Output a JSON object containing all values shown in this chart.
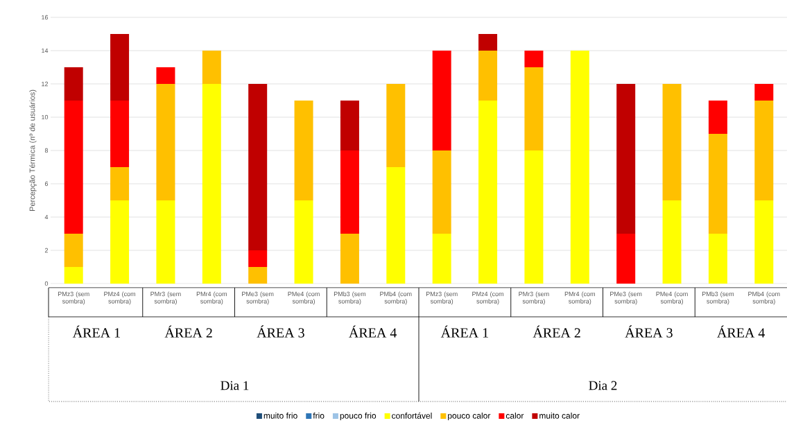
{
  "chart_data": {
    "type": "bar",
    "stacked": true,
    "ylabel": "Percepção Térmica (nº de usuários)",
    "categories": [
      "PMz3 (sem sombra)",
      "PMz4 (com sombra)",
      "PMr3 (sem sombra)",
      "PMr4 (com sombra)",
      "PMe3 (sem sombra)",
      "PMe4 (com sombra)",
      "PMb3 (sem sombra)",
      "PMb4 (com sombra)",
      "PMz3 (sem sombra)",
      "PMz4 (com sombra)",
      "PMr3 (sem sombra)",
      "PMr4 (com sombra)",
      "PMe3 (sem sombra)",
      "PMe4 (com sombra)",
      "PMb3 (sem sombra)",
      "PMb4 (com sombra)"
    ],
    "series": [
      {
        "name": "muito frio",
        "color": "#1f4e79",
        "values": [
          0,
          0,
          0,
          0,
          0,
          0,
          0,
          0,
          0,
          0,
          0,
          0,
          0,
          0,
          0,
          0
        ]
      },
      {
        "name": "frio",
        "color": "#2e75b6",
        "values": [
          0,
          0,
          0,
          0,
          0,
          0,
          0,
          0,
          0,
          0,
          0,
          0,
          0,
          0,
          0,
          0
        ]
      },
      {
        "name": "pouco frio",
        "color": "#9dc3e6",
        "values": [
          0,
          0,
          0,
          0,
          0,
          0,
          0,
          0,
          0,
          0,
          0,
          0,
          0,
          0,
          0,
          0
        ]
      },
      {
        "name": "confortável",
        "color": "#ffff00",
        "values": [
          1,
          5,
          5,
          12,
          0,
          5,
          0,
          7,
          3,
          11,
          8,
          14,
          0,
          5,
          3,
          5
        ]
      },
      {
        "name": "pouco calor",
        "color": "#ffc000",
        "values": [
          2,
          2,
          7,
          2,
          1,
          6,
          3,
          5,
          5,
          3,
          5,
          0,
          0,
          7,
          6,
          6
        ]
      },
      {
        "name": "calor",
        "color": "#ff0000",
        "values": [
          8,
          4,
          1,
          0,
          1,
          0,
          5,
          0,
          6,
          0,
          1,
          0,
          3,
          0,
          2,
          1
        ]
      },
      {
        "name": "muito calor",
        "color": "#c00000",
        "values": [
          2,
          4,
          0,
          0,
          10,
          0,
          3,
          0,
          0,
          1,
          0,
          0,
          9,
          0,
          0,
          0
        ]
      }
    ],
    "ylim": [
      0,
      16
    ],
    "yticks": [
      0,
      2,
      4,
      6,
      8,
      10,
      12,
      14,
      16
    ],
    "grid": "y",
    "legend": "bottom",
    "annotations": [
      "ÁREA 1",
      "ÁREA 2",
      "ÁREA 3",
      "ÁREA 4",
      "ÁREA 1",
      "ÁREA 2",
      "ÁREA 3",
      "ÁREA 4",
      "Dia 1",
      "Dia 2"
    ]
  }
}
